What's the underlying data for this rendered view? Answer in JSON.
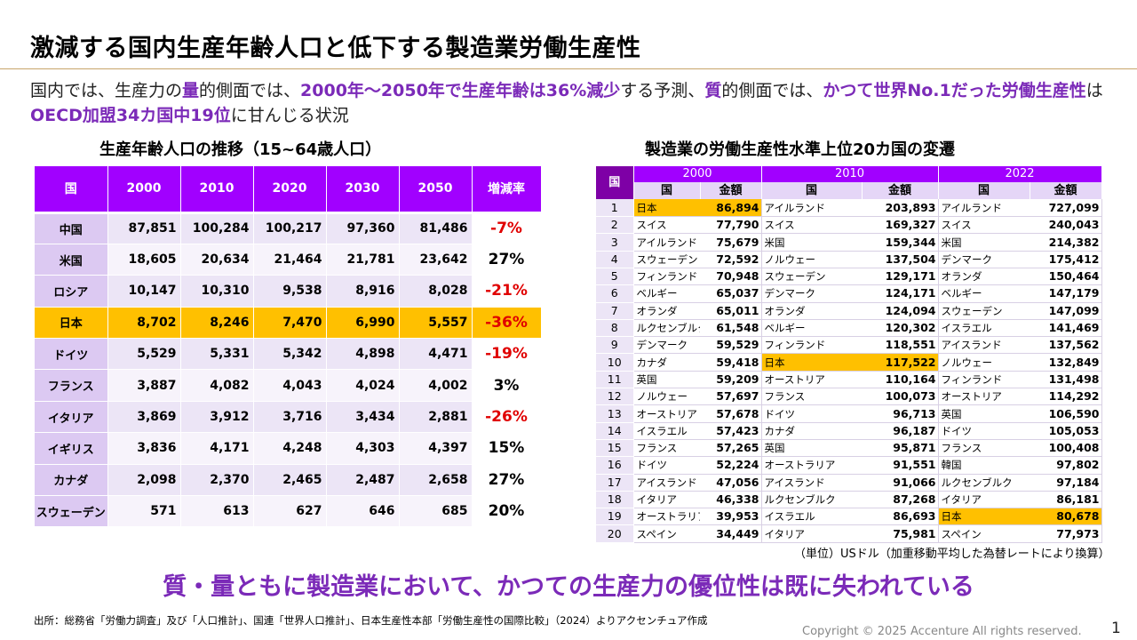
{
  "title": "激減する国内生産年齢人口と低下する製造業労働生産性",
  "intro": [
    {
      "t": "国内では、生産力の",
      "hl": false
    },
    {
      "t": "量",
      "hl": true
    },
    {
      "t": "的側面では、",
      "hl": false
    },
    {
      "t": "2000年～2050年で生産年齢は36%減少",
      "hl": true
    },
    {
      "t": "する予測、",
      "hl": false
    },
    {
      "t": "質",
      "hl": true
    },
    {
      "t": "的側面では、",
      "hl": false
    },
    {
      "t": "かつて世界No.1だった労働生産性",
      "hl": true
    },
    {
      "t": "は",
      "hl": false
    },
    {
      "t": "OECD加盟34カ国中19位",
      "hl": true
    },
    {
      "t": "に甘んじる状況",
      "hl": false
    }
  ],
  "left_title": "生産年齢人口の推移（15~64歳人口）",
  "right_title": "製造業の労働生産性水準上位20カ国の変遷",
  "pop_table": {
    "headers": [
      "国",
      "2000",
      "2010",
      "2020",
      "2030",
      "2050",
      "増減率"
    ],
    "rows": [
      {
        "country": "中国",
        "v": [
          "87,851",
          "100,284",
          "100,217",
          "97,360",
          "81,486"
        ],
        "rate": "-7%",
        "neg": true,
        "jp": false
      },
      {
        "country": "米国",
        "v": [
          "18,605",
          "20,634",
          "21,464",
          "21,781",
          "23,642"
        ],
        "rate": "27%",
        "neg": false,
        "jp": false
      },
      {
        "country": "ロシア",
        "v": [
          "10,147",
          "10,310",
          "9,538",
          "8,916",
          "8,028"
        ],
        "rate": "-21%",
        "neg": true,
        "jp": false
      },
      {
        "country": "日本",
        "v": [
          "8,702",
          "8,246",
          "7,470",
          "6,990",
          "5,557"
        ],
        "rate": "-36%",
        "neg": true,
        "jp": true
      },
      {
        "country": "ドイツ",
        "v": [
          "5,529",
          "5,331",
          "5,342",
          "4,898",
          "4,471"
        ],
        "rate": "-19%",
        "neg": true,
        "jp": false
      },
      {
        "country": "フランス",
        "v": [
          "3,887",
          "4,082",
          "4,043",
          "4,024",
          "4,002"
        ],
        "rate": "3%",
        "neg": false,
        "jp": false
      },
      {
        "country": "イタリア",
        "v": [
          "3,869",
          "3,912",
          "3,716",
          "3,434",
          "2,881"
        ],
        "rate": "-26%",
        "neg": true,
        "jp": false
      },
      {
        "country": "イギリス",
        "v": [
          "3,836",
          "4,171",
          "4,248",
          "4,303",
          "4,397"
        ],
        "rate": "15%",
        "neg": false,
        "jp": false
      },
      {
        "country": "カナダ",
        "v": [
          "2,098",
          "2,370",
          "2,465",
          "2,487",
          "2,658"
        ],
        "rate": "27%",
        "neg": false,
        "jp": false
      },
      {
        "country": "スウェーデン",
        "v": [
          "571",
          "613",
          "627",
          "646",
          "685"
        ],
        "rate": "20%",
        "neg": false,
        "jp": false
      }
    ]
  },
  "prod_table": {
    "rank_header": "国",
    "years": [
      "2000",
      "2010",
      "2022"
    ],
    "col_country": "国",
    "col_amount": "金額",
    "rows": [
      {
        "rank": "1",
        "y2000": [
          "日本",
          "86,894"
        ],
        "y2010": [
          "アイルランド",
          "203,893"
        ],
        "y2022": [
          "アイルランド",
          "727,099"
        ]
      },
      {
        "rank": "2",
        "y2000": [
          "スイス",
          "77,790"
        ],
        "y2010": [
          "スイス",
          "169,327"
        ],
        "y2022": [
          "スイス",
          "240,043"
        ]
      },
      {
        "rank": "3",
        "y2000": [
          "アイルランド",
          "75,679"
        ],
        "y2010": [
          "米国",
          "159,344"
        ],
        "y2022": [
          "米国",
          "214,382"
        ]
      },
      {
        "rank": "4",
        "y2000": [
          "スウェーデン",
          "72,592"
        ],
        "y2010": [
          "ノルウェー",
          "137,504"
        ],
        "y2022": [
          "デンマーク",
          "175,412"
        ]
      },
      {
        "rank": "5",
        "y2000": [
          "フィンランド",
          "70,948"
        ],
        "y2010": [
          "スウェーデン",
          "129,171"
        ],
        "y2022": [
          "オランダ",
          "150,464"
        ]
      },
      {
        "rank": "6",
        "y2000": [
          "ベルギー",
          "65,037"
        ],
        "y2010": [
          "デンマーク",
          "124,171"
        ],
        "y2022": [
          "ベルギー",
          "147,179"
        ]
      },
      {
        "rank": "7",
        "y2000": [
          "オランダ",
          "65,011"
        ],
        "y2010": [
          "オランダ",
          "124,094"
        ],
        "y2022": [
          "スウェーデン",
          "147,099"
        ]
      },
      {
        "rank": "8",
        "y2000": [
          "ルクセンブルク",
          "61,548"
        ],
        "y2010": [
          "ベルギー",
          "120,302"
        ],
        "y2022": [
          "イスラエル",
          "141,469"
        ]
      },
      {
        "rank": "9",
        "y2000": [
          "デンマーク",
          "59,529"
        ],
        "y2010": [
          "フィンランド",
          "118,551"
        ],
        "y2022": [
          "アイスランド",
          "137,562"
        ]
      },
      {
        "rank": "10",
        "y2000": [
          "カナダ",
          "59,418"
        ],
        "y2010": [
          "日本",
          "117,522"
        ],
        "y2022": [
          "ノルウェー",
          "132,849"
        ]
      },
      {
        "rank": "11",
        "y2000": [
          "英国",
          "59,209"
        ],
        "y2010": [
          "オーストリア",
          "110,164"
        ],
        "y2022": [
          "フィンランド",
          "131,498"
        ]
      },
      {
        "rank": "12",
        "y2000": [
          "ノルウェー",
          "57,697"
        ],
        "y2010": [
          "フランス",
          "100,073"
        ],
        "y2022": [
          "オーストリア",
          "114,292"
        ]
      },
      {
        "rank": "13",
        "y2000": [
          "オーストリア",
          "57,678"
        ],
        "y2010": [
          "ドイツ",
          "96,713"
        ],
        "y2022": [
          "英国",
          "106,590"
        ]
      },
      {
        "rank": "14",
        "y2000": [
          "イスラエル",
          "57,423"
        ],
        "y2010": [
          "カナダ",
          "96,187"
        ],
        "y2022": [
          "ドイツ",
          "105,053"
        ]
      },
      {
        "rank": "15",
        "y2000": [
          "フランス",
          "57,265"
        ],
        "y2010": [
          "英国",
          "95,871"
        ],
        "y2022": [
          "フランス",
          "100,408"
        ]
      },
      {
        "rank": "16",
        "y2000": [
          "ドイツ",
          "52,224"
        ],
        "y2010": [
          "オーストラリア",
          "91,551"
        ],
        "y2022": [
          "韓国",
          "97,802"
        ]
      },
      {
        "rank": "17",
        "y2000": [
          "アイスランド",
          "47,056"
        ],
        "y2010": [
          "アイスランド",
          "91,066"
        ],
        "y2022": [
          "ルクセンブルク",
          "97,184"
        ]
      },
      {
        "rank": "18",
        "y2000": [
          "イタリア",
          "46,338"
        ],
        "y2010": [
          "ルクセンブルク",
          "87,268"
        ],
        "y2022": [
          "イタリア",
          "86,181"
        ]
      },
      {
        "rank": "19",
        "y2000": [
          "オーストラリア",
          "39,953"
        ],
        "y2010": [
          "イスラエル",
          "86,693"
        ],
        "y2022": [
          "日本",
          "80,678"
        ]
      },
      {
        "rank": "20",
        "y2000": [
          "スペイン",
          "34,449"
        ],
        "y2010": [
          "イタリア",
          "75,981"
        ],
        "y2022": [
          "スペイン",
          "77,973"
        ]
      }
    ]
  },
  "unit_note": "（単位）USドル（加重移動平均した為替レートにより換算）",
  "conclusion": "質・量ともに製造業において、かつての生産力の優位性は既に失われている",
  "source": "出所：総務省「労働力調査」及び「人口推計」、国連「世界人口推計」、日本生産性本部「労働生産性の国際比較」（2024）よりアクセンチュア作成",
  "copyright": "Copyright © 2025 Accenture All rights reserved.",
  "page_number": "1"
}
